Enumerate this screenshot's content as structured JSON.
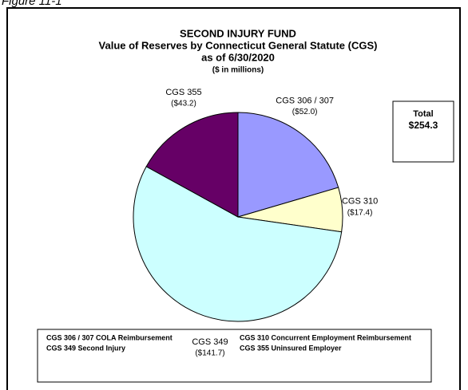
{
  "caption": "Figure 11-1",
  "chart_data": {
    "type": "pie",
    "title": [
      "SECOND INJURY FUND",
      "Value of Reserves by Connecticut General Statute (CGS)",
      "as of 6/30/2020"
    ],
    "subtitle": "($ in millions)",
    "categories": [
      "CGS 306 / 307",
      "CGS 310",
      "CGS 349",
      "CGS 355"
    ],
    "values": [
      52.0,
      17.4,
      141.7,
      43.2
    ],
    "value_labels": [
      "($52.0)",
      "($17.4)",
      "($141.7)",
      "($43.2)"
    ],
    "colors": [
      "#9999ff",
      "#ffffcc",
      "#ccffff",
      "#660066"
    ],
    "total": {
      "label": "Total",
      "value_label": "$254.3"
    },
    "legend": [
      "CGS 306 / 307 COLA Reimbursement",
      "CGS 310 Concurrent Employment Reimbursement",
      "CGS 349 Second Injury",
      "CGS 355 Uninsured Employer"
    ]
  }
}
